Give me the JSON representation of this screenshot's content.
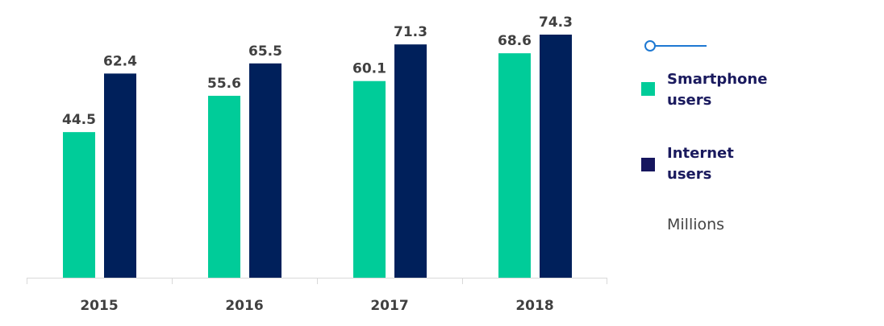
{
  "chart_data": {
    "type": "bar",
    "title": "",
    "xlabel": "",
    "ylabel": "",
    "units": "Millions",
    "categories": [
      "2015",
      "2016",
      "2017",
      "2018"
    ],
    "series": [
      {
        "name": "Smartphone users",
        "color": "#00CC99",
        "values": [
          44.5,
          55.6,
          60.1,
          68.6
        ]
      },
      {
        "name": "Internet users",
        "color": "#00205B",
        "values": [
          62.4,
          65.5,
          71.3,
          74.3
        ]
      }
    ],
    "ylim": [
      0,
      80
    ],
    "grid": false,
    "legend_placement": "right"
  },
  "legend": {
    "line_color": "#1E78D2",
    "text_color": "#1A1A5E"
  }
}
